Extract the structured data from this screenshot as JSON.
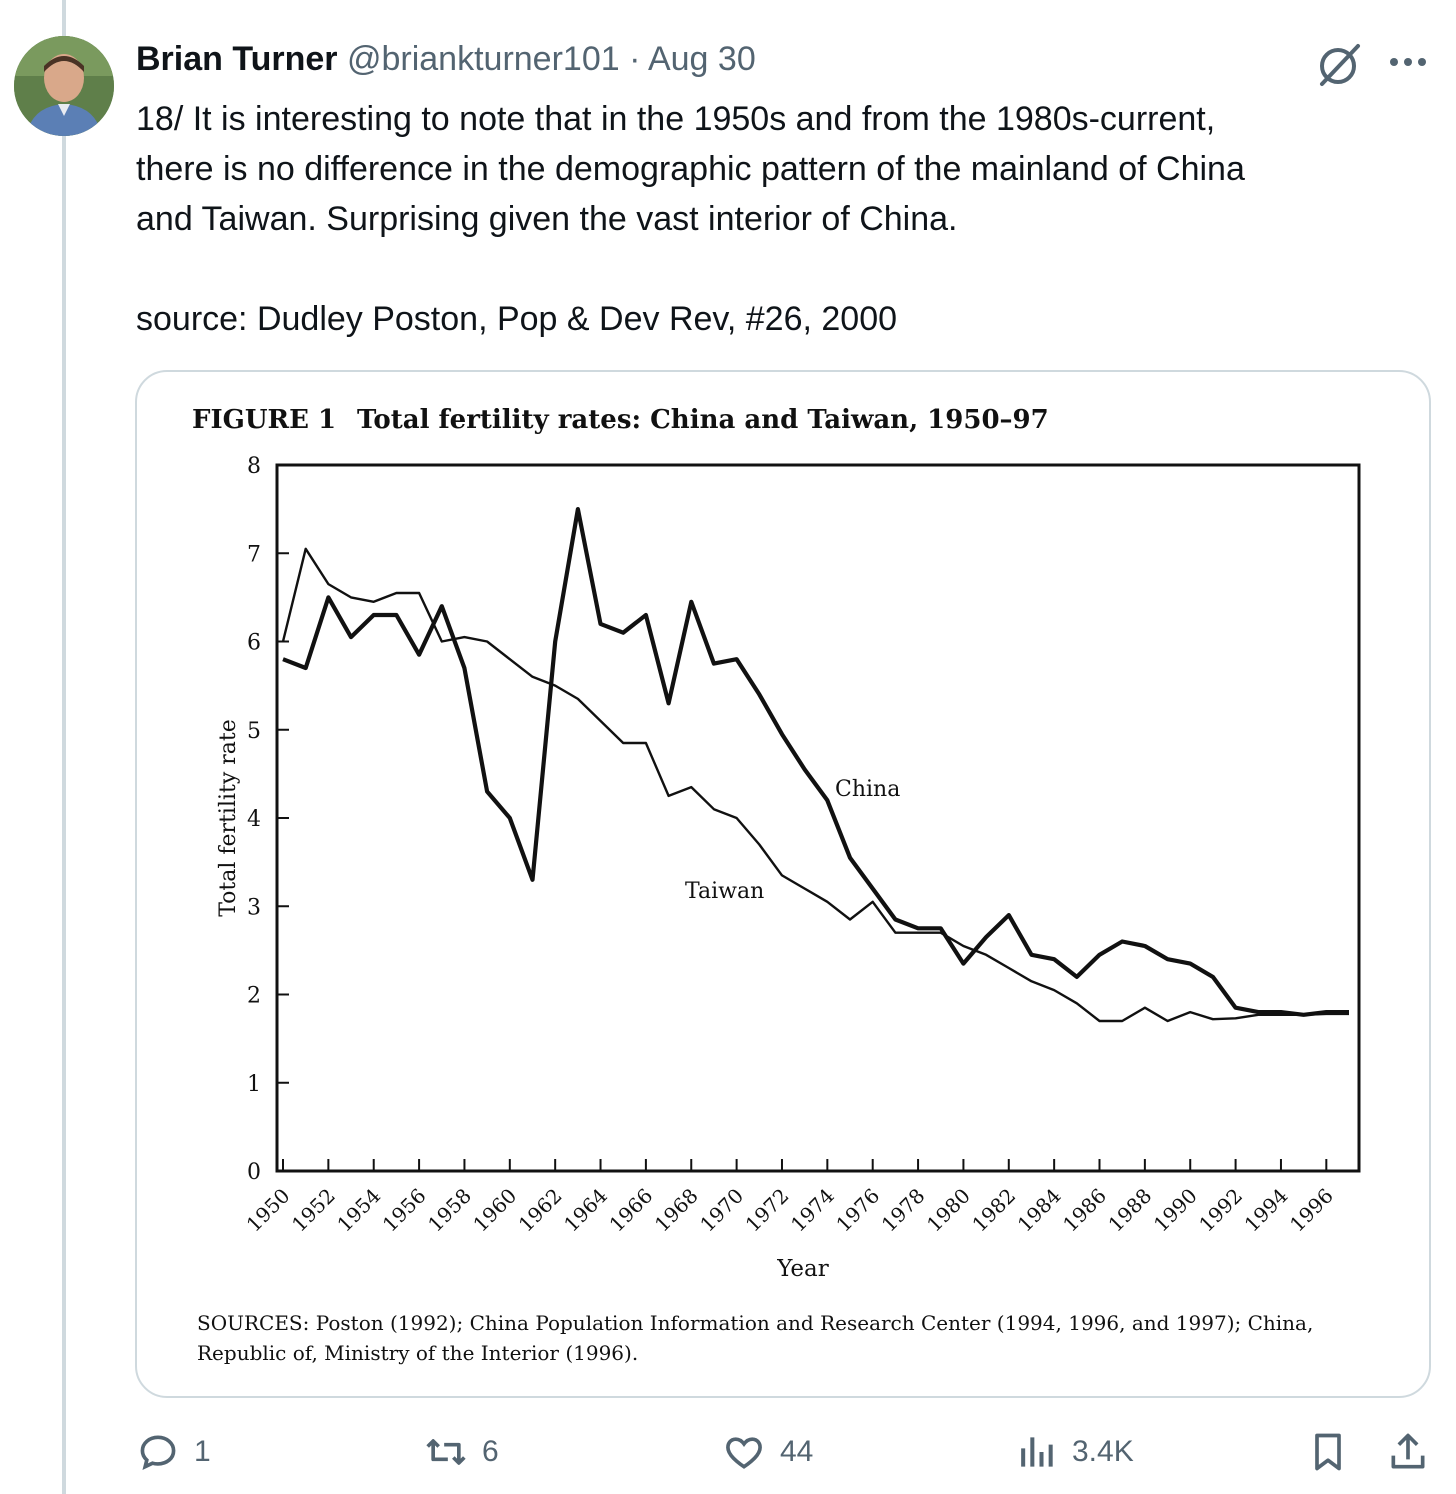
{
  "tweet": {
    "author_name": "Brian Turner",
    "handle": "@briankturner101",
    "date": "Aug 30",
    "meta_line": "@briankturner101 · Aug 30",
    "text": "18/ It is interesting to note that in the 1950s and from the 1980s-current,\nthere is no difference in the demographic pattern of the mainland of China\nand Taiwan. Surprising given the vast interior of China.\n\nsource: Dudley Poston, Pop & Dev Rev, #26, 2000"
  },
  "figure": {
    "label": "FIGURE 1",
    "title": "Total fertility rates: China and Taiwan, 1950–97",
    "sources_line1": "SOURCES: Poston (1992); China Population Information and Research Center (1994, 1996, and 1997); China,",
    "sources_line2": "Republic of, Ministry of the Interior (1996)."
  },
  "chart_data": {
    "type": "line",
    "xlabel": "Year",
    "ylabel": "Total fertility rate",
    "xlim": [
      1950,
      1997
    ],
    "ylim": [
      0,
      8
    ],
    "x_ticks": [
      1950,
      1952,
      1954,
      1956,
      1958,
      1960,
      1962,
      1964,
      1966,
      1968,
      1970,
      1972,
      1974,
      1976,
      1978,
      1980,
      1982,
      1984,
      1986,
      1988,
      1990,
      1992,
      1994,
      1996
    ],
    "y_ticks": [
      0,
      1,
      2,
      3,
      4,
      5,
      6,
      7,
      8
    ],
    "x": [
      1950,
      1951,
      1952,
      1953,
      1954,
      1955,
      1956,
      1957,
      1958,
      1959,
      1960,
      1961,
      1962,
      1963,
      1964,
      1965,
      1966,
      1967,
      1968,
      1969,
      1970,
      1971,
      1972,
      1973,
      1974,
      1975,
      1976,
      1977,
      1978,
      1979,
      1980,
      1981,
      1982,
      1983,
      1984,
      1985,
      1986,
      1987,
      1988,
      1989,
      1990,
      1991,
      1992,
      1993,
      1994,
      1995,
      1996,
      1997
    ],
    "series": [
      {
        "name": "China",
        "values": [
          5.8,
          5.7,
          6.5,
          6.05,
          6.3,
          6.3,
          5.85,
          6.4,
          5.7,
          4.3,
          4.0,
          3.3,
          6.0,
          7.5,
          6.2,
          6.1,
          6.3,
          5.3,
          6.45,
          5.75,
          5.8,
          5.4,
          4.95,
          4.55,
          4.2,
          3.55,
          3.2,
          2.85,
          2.75,
          2.75,
          2.35,
          2.65,
          2.9,
          2.45,
          2.4,
          2.2,
          2.45,
          2.6,
          2.55,
          2.4,
          2.35,
          2.2,
          1.85,
          1.8,
          1.8,
          1.77,
          1.8,
          1.8
        ]
      },
      {
        "name": "Taiwan",
        "values": [
          6.0,
          7.05,
          6.65,
          6.5,
          6.45,
          6.55,
          6.55,
          6.0,
          6.05,
          6.0,
          5.8,
          5.6,
          5.5,
          5.35,
          5.1,
          4.85,
          4.85,
          4.25,
          4.35,
          4.1,
          4.0,
          3.7,
          3.35,
          3.2,
          3.05,
          2.85,
          3.05,
          2.7,
          2.7,
          2.7,
          2.55,
          2.45,
          2.3,
          2.15,
          2.05,
          1.9,
          1.7,
          1.7,
          1.85,
          1.7,
          1.8,
          1.72,
          1.73,
          1.77,
          1.77,
          1.77,
          1.78,
          1.78
        ]
      }
    ],
    "annotations": [
      "China",
      "Taiwan"
    ],
    "grid": false,
    "legend": "none"
  },
  "actions": {
    "replies": "1",
    "retweets": "6",
    "likes": "44",
    "views": "3.4K"
  },
  "icons": [
    "grok-icon",
    "more-icon",
    "reply-icon",
    "retweet-icon",
    "like-icon",
    "views-icon",
    "bookmark-icon",
    "share-icon"
  ]
}
